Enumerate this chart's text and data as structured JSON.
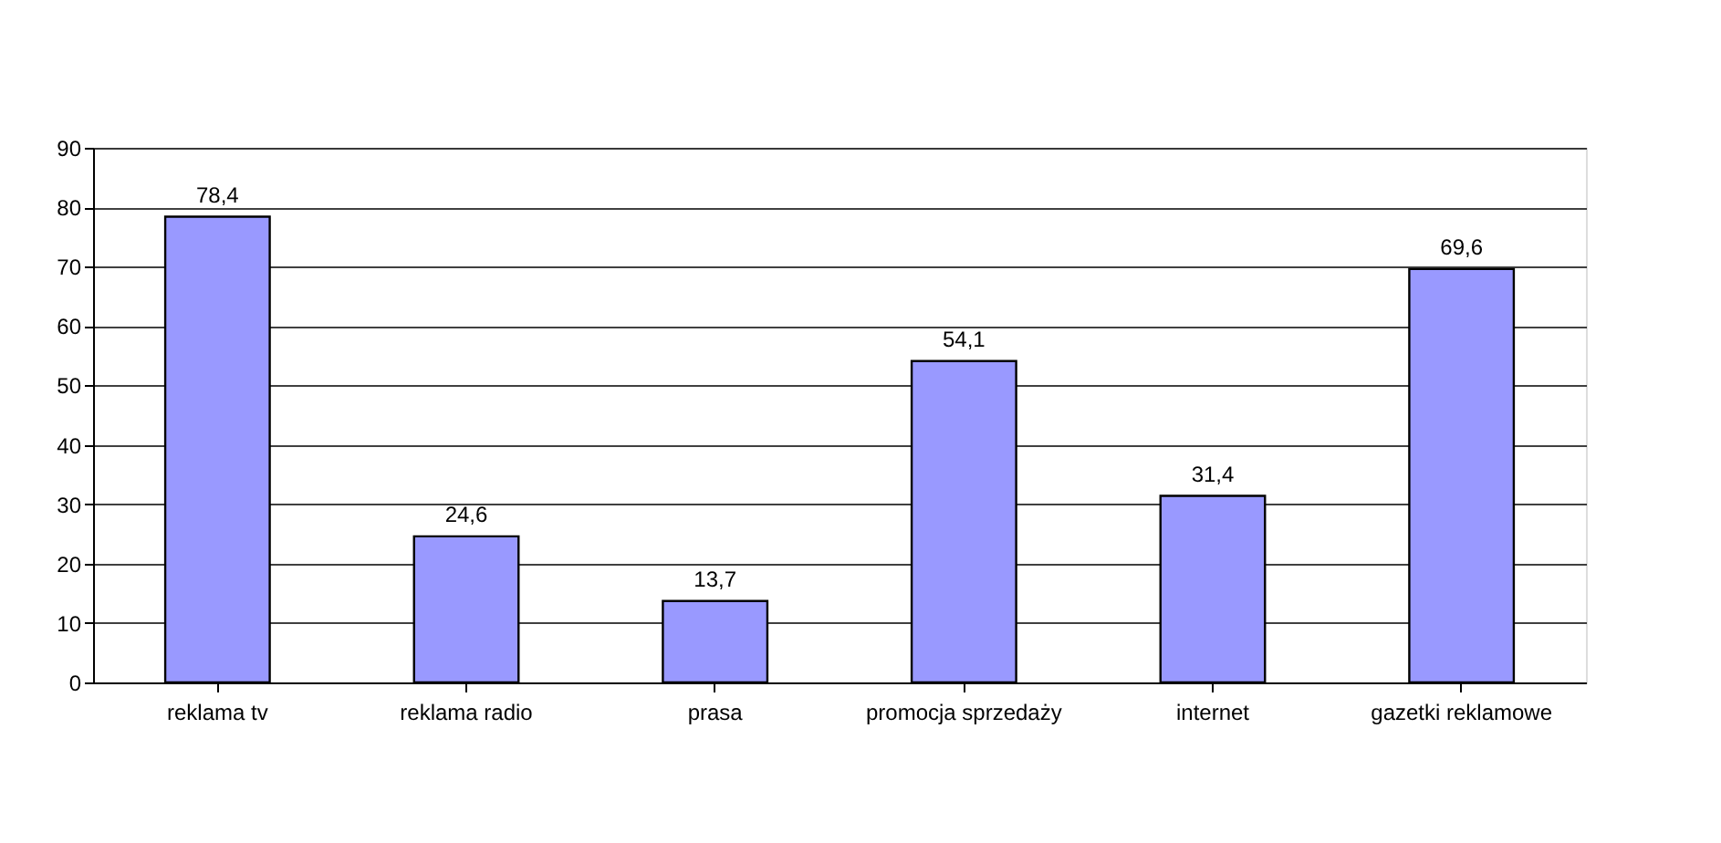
{
  "chart_data": {
    "type": "bar",
    "categories": [
      "reklama tv",
      "reklama radio",
      "prasa",
      "promocja sprzedaży",
      "internet",
      "gazetki reklamowe"
    ],
    "values": [
      78.4,
      24.6,
      13.7,
      54.1,
      31.4,
      69.6
    ],
    "value_labels": [
      "78,4",
      "24,6",
      "13,7",
      "54,1",
      "31,4",
      "69,6"
    ],
    "color": "#9999ff",
    "ylim": [
      0,
      90
    ],
    "yticks": [
      0,
      10,
      20,
      30,
      40,
      50,
      60,
      70,
      80,
      90
    ],
    "grid": "y"
  }
}
